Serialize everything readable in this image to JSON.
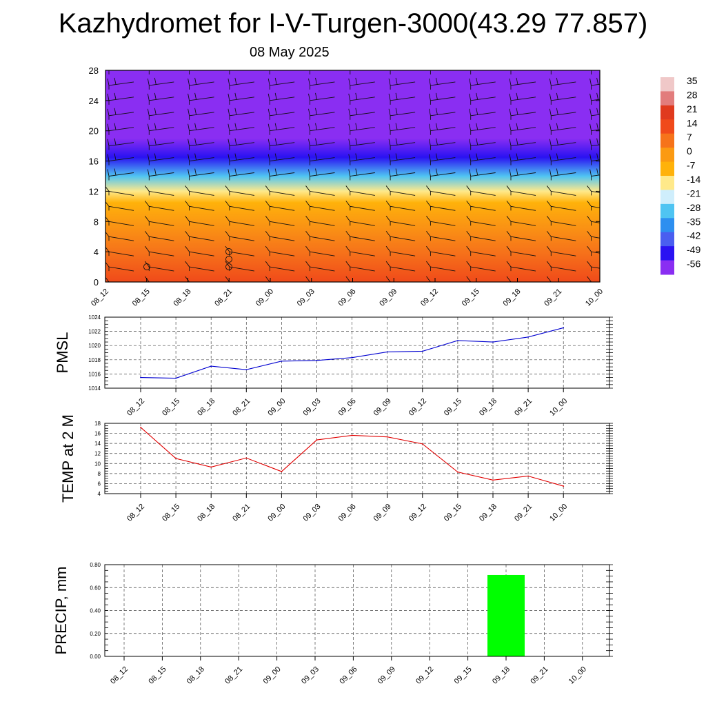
{
  "title": "Kazhydromet for I-V-Turgen-3000(43.29 77.857)",
  "subtitle": "08 May 2025",
  "time_labels": [
    "08_12",
    "08_15",
    "08_18",
    "08_21",
    "09_00",
    "09_03",
    "09_06",
    "09_09",
    "09_12",
    "09_15",
    "09_18",
    "09_21",
    "10_00"
  ],
  "chart_data": [
    {
      "type": "heatmap",
      "name": "Vertical cross-section of temperature with wind barbs",
      "x": [
        "08_12",
        "08_15",
        "08_18",
        "08_21",
        "09_00",
        "09_03",
        "09_06",
        "09_09",
        "09_12",
        "09_15",
        "09_18",
        "09_21",
        "10_00"
      ],
      "y_ticks": [
        "0",
        "4",
        "8",
        "12",
        "16",
        "20",
        "24",
        "28"
      ],
      "ylim": [
        0,
        28
      ],
      "colorbar_labels": [
        "35",
        "28",
        "21",
        "14",
        "7",
        "0",
        "-7",
        "-14",
        "-21",
        "-28",
        "-35",
        "-42",
        "-49",
        "-56"
      ],
      "colorbar_colors": [
        "#f0c8c8",
        "#e27c7c",
        "#e03a1e",
        "#f04a1a",
        "#f6731a",
        "#fb9a12",
        "#ffb20a",
        "#ffe98a",
        "#cfeefc",
        "#4fc4f2",
        "#2d8ff0",
        "#4a5ef0",
        "#2a12f2",
        "#8a2ef2"
      ],
      "temperature_profile": [
        {
          "height": 0,
          "temp": 14
        },
        {
          "height": 4,
          "temp": 7
        },
        {
          "height": 8,
          "temp": 0
        },
        {
          "height": 10.5,
          "temp": -7
        },
        {
          "height": 12,
          "temp": -14
        },
        {
          "height": 14,
          "temp": -28
        },
        {
          "height": 16.5,
          "temp": -49
        },
        {
          "height": 19,
          "temp": -56
        },
        {
          "height": 21,
          "temp": -56
        },
        {
          "height": 28,
          "temp": -56
        }
      ],
      "grid": false
    },
    {
      "type": "line",
      "ylabel": "PMSL",
      "categories": [
        "08_12",
        "08_15",
        "08_18",
        "08_21",
        "09_00",
        "09_03",
        "09_06",
        "09_09",
        "09_12",
        "09_15",
        "09_18",
        "09_21",
        "10_00"
      ],
      "y_ticks": [
        "1014",
        "1016",
        "1018",
        "1020",
        "1022",
        "1024"
      ],
      "series": [
        {
          "values": [
            1015.5,
            1015.4,
            1017.1,
            1016.6,
            1017.8,
            1017.9,
            1018.3,
            1019.1,
            1019.2,
            1020.7,
            1020.5,
            1021.2,
            1022.5
          ],
          "color": "#0000d0"
        }
      ],
      "ylim": [
        1014,
        1024
      ],
      "grid": true
    },
    {
      "type": "line",
      "ylabel": "TEMP at 2 M",
      "categories": [
        "08_12",
        "08_15",
        "08_18",
        "08_21",
        "09_00",
        "09_03",
        "09_06",
        "09_09",
        "09_12",
        "09_15",
        "09_18",
        "09_21",
        "10_00"
      ],
      "y_ticks": [
        "4",
        "6",
        "8",
        "10",
        "12",
        "14",
        "16",
        "18"
      ],
      "series": [
        {
          "values": [
            17.2,
            11.0,
            9.3,
            11.1,
            8.4,
            14.7,
            15.6,
            15.3,
            13.9,
            8.3,
            6.7,
            7.5,
            5.5
          ],
          "color": "#e00000"
        }
      ],
      "ylim": [
        4,
        18
      ],
      "grid": true
    },
    {
      "type": "bar",
      "ylabel": "PRECIP, mm",
      "categories": [
        "08_12",
        "08_15",
        "08_18",
        "08_21",
        "09_00",
        "09_03",
        "09_06",
        "09_09",
        "09_12",
        "09_15",
        "09_18",
        "09_21",
        "10_00"
      ],
      "y_ticks": [
        "0.00",
        "0.20",
        "0.40",
        "0.60",
        "0.80"
      ],
      "values": [
        0,
        0,
        0,
        0,
        0,
        0,
        0,
        0,
        0,
        0,
        0.71,
        0,
        0
      ],
      "bar_color": "#00ff00",
      "ylim": [
        0,
        0.8
      ],
      "grid": true
    }
  ]
}
